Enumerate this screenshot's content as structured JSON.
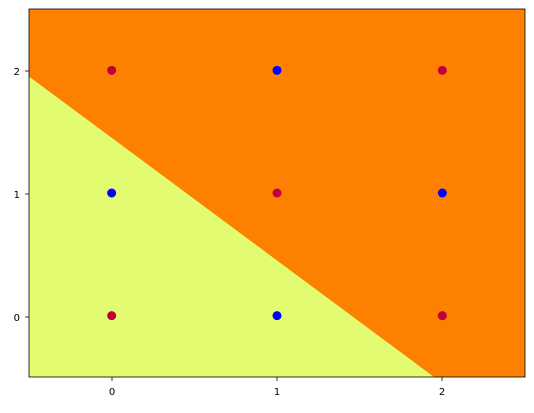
{
  "chart_data": {
    "type": "scatter",
    "title": "",
    "xlabel": "",
    "ylabel": "",
    "xlim": [
      -0.5,
      2.5
    ],
    "ylim": [
      -0.5,
      2.5
    ],
    "grid": false,
    "x_ticks": [
      0,
      1,
      2
    ],
    "y_ticks": [
      0,
      1,
      2
    ],
    "x_tick_labels": [
      "0",
      "1",
      "2"
    ],
    "y_tick_labels": [
      "0",
      "1",
      "2"
    ],
    "decision_regions": {
      "boundary": {
        "from": [
          -0.5,
          1.95
        ],
        "to": [
          1.95,
          -0.5
        ]
      },
      "lower_left_color": "#e3fb70",
      "upper_right_color": "#fe8000"
    },
    "series": [
      {
        "color": "#0000ff",
        "points": [
          [
            0,
            1
          ],
          [
            1,
            2
          ],
          [
            1,
            0
          ],
          [
            2,
            1
          ]
        ]
      },
      {
        "color": "#c0003e",
        "points": [
          [
            0,
            0
          ],
          [
            0,
            2
          ],
          [
            1,
            1
          ],
          [
            2,
            0
          ],
          [
            2,
            2
          ]
        ]
      }
    ]
  }
}
